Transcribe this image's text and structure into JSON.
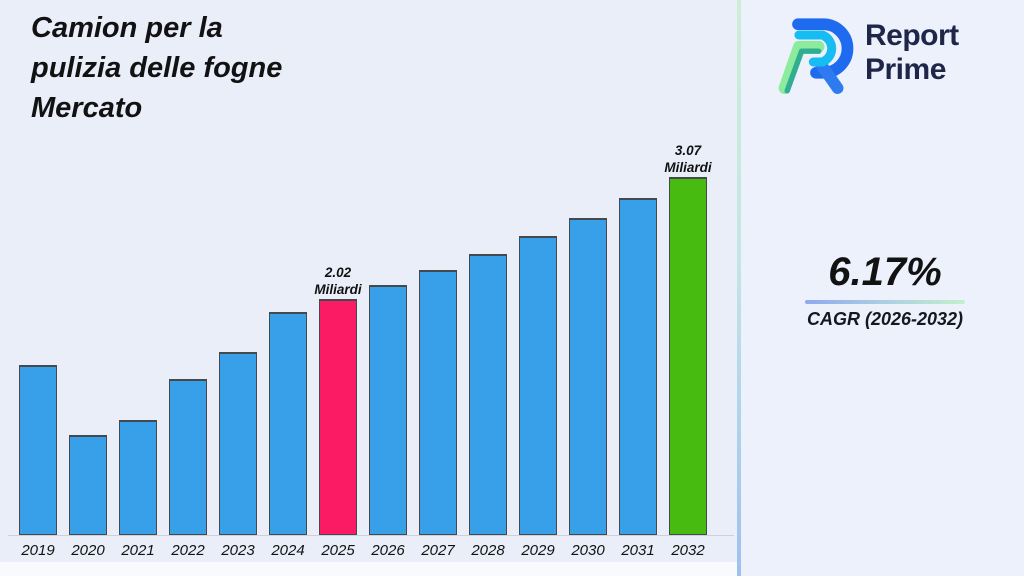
{
  "title": {
    "lines": [
      "Camion per la",
      "pulizia delle fogne",
      "Mercato"
    ]
  },
  "brand": {
    "name_line1": "Report",
    "name_line2": "Prime"
  },
  "cagr": {
    "value": "6.17%",
    "label": "CAGR (2026-2032)"
  },
  "chart_data": {
    "type": "bar",
    "title": "Camion per la pulizia delle fogne Mercato",
    "unit": "Miliardi",
    "categories": [
      "2019",
      "2020",
      "2021",
      "2022",
      "2023",
      "2024",
      "2025",
      "2026",
      "2027",
      "2028",
      "2029",
      "2030",
      "2031",
      "2032"
    ],
    "values": [
      1.46,
      0.86,
      0.99,
      1.34,
      1.57,
      1.91,
      2.02,
      2.14,
      2.27,
      2.41,
      2.56,
      2.72,
      2.89,
      3.07
    ],
    "ylim": [
      0,
      3.2
    ],
    "grid": false,
    "legend": false,
    "annotations": [
      {
        "category": "2025",
        "lines": [
          "2.02",
          "Miliardi"
        ]
      },
      {
        "category": "2032",
        "lines": [
          "3.07",
          "Miliardi"
        ]
      }
    ],
    "colors": {
      "default": "#38a0e8",
      "2025": "#fb1b64",
      "2032": "#47bb10"
    },
    "axis_line_color": "#ccd2dc"
  }
}
